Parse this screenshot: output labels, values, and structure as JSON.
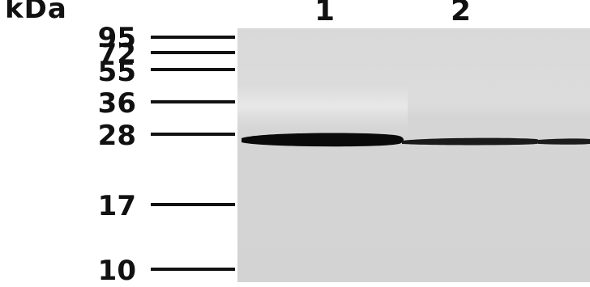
{
  "unit_label": "kDa",
  "lanes": [
    {
      "label": "1",
      "band_intensity": 1.0
    },
    {
      "label": "2",
      "band_intensity": 0.55
    }
  ],
  "markers": [
    {
      "label": "95"
    },
    {
      "label": "72"
    },
    {
      "label": "55"
    },
    {
      "label": "36"
    },
    {
      "label": "28"
    },
    {
      "label": "17"
    },
    {
      "label": "10"
    }
  ],
  "band_marker": "28",
  "colors": {
    "membrane": "#d8d8d8",
    "band": "#0a0a0a",
    "text": "#111111"
  }
}
